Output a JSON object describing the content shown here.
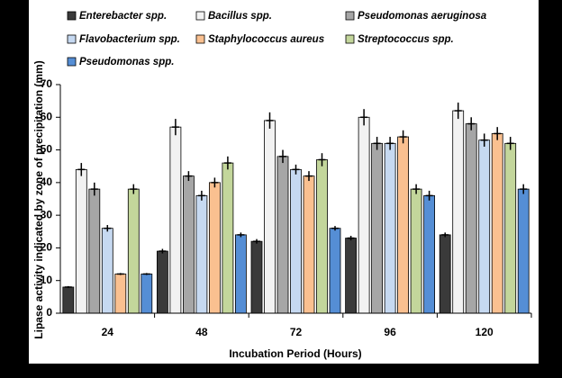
{
  "chart_data": {
    "type": "bar",
    "y_label": "Lipase activity indicated by zone of precipitation  (mm)",
    "x_label": "Incubation Period (Hours)",
    "categories": [
      "24",
      "48",
      "72",
      "96",
      "120"
    ],
    "ylim": [
      0,
      70
    ],
    "yticks": [
      0,
      10,
      20,
      30,
      40,
      50,
      60,
      70
    ],
    "series": [
      {
        "name": "Enterebacter spp.",
        "color": "#3a3a3a",
        "values": [
          8,
          19,
          22,
          23,
          24
        ],
        "errors": [
          0.3,
          0.7,
          0.7,
          0.7,
          0.7
        ]
      },
      {
        "name": "Bacillus spp.",
        "color": "#f2f2f2",
        "values": [
          44,
          57,
          59,
          60,
          62
        ],
        "errors": [
          2,
          2.5,
          2.5,
          2.5,
          2.5
        ]
      },
      {
        "name": "Pseudomonas  aeruginosa",
        "color": "#a6a6a6",
        "values": [
          38,
          42,
          48,
          52,
          58
        ],
        "errors": [
          2,
          1.5,
          2,
          2,
          2
        ]
      },
      {
        "name": "Flavobacterium spp.",
        "color": "#c6d9f1",
        "values": [
          26,
          36,
          44,
          52,
          53
        ],
        "errors": [
          1,
          1.5,
          1.5,
          2,
          2
        ]
      },
      {
        "name": "Staphylococcus aureus",
        "color": "#fac090",
        "values": [
          12,
          40,
          42,
          54,
          55
        ],
        "errors": [
          0.3,
          1.5,
          1.5,
          2,
          2
        ]
      },
      {
        "name": "Streptococcus spp.",
        "color": "#c3d69b",
        "values": [
          38,
          46,
          47,
          38,
          52
        ],
        "errors": [
          1.5,
          2,
          2,
          1.5,
          2
        ]
      },
      {
        "name": "Pseudomonas spp.",
        "color": "#558ed5",
        "values": [
          12,
          24,
          26,
          36,
          38
        ],
        "errors": [
          0.3,
          0.7,
          0.7,
          1.5,
          1.5
        ]
      }
    ]
  }
}
